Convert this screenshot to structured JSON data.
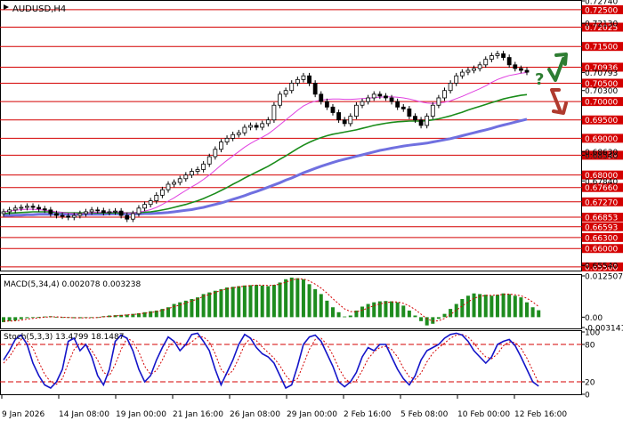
{
  "colors": {
    "background": "#ffffff",
    "frame": "#000000",
    "level_line": "#d40000",
    "level_label_bg": "#d40000",
    "level_label_text": "#ffffff",
    "candle": "#000000",
    "ma_fast": "#e040e0",
    "ma_mid": "#1a8c1a",
    "ma_slow": "#7070e0",
    "macd_hist": "#1e8c1e",
    "macd_signal": "#d40000",
    "stoch_main": "#1414c8",
    "stoch_signal": "#d40000",
    "stoch_level": "#d40000",
    "arrow_up": "#2e7d32",
    "arrow_down": "#b03a2e",
    "question": "#2e7d32"
  },
  "chart_data": [
    {
      "type": "candlestick",
      "title": "AUDUSD,H4",
      "ylim": [
        0.654,
        0.7274
      ],
      "x_tick_labels": [
        "9 Jan 2026",
        "14 Jan 08:00",
        "19 Jan 00:00",
        "21 Jan 16:00",
        "26 Jan 08:00",
        "29 Jan 00:00",
        "2 Feb 16:00",
        "5 Feb 08:00",
        "10 Feb 00:00",
        "12 Feb 16:00"
      ],
      "y_tick_labels": [
        "0.72740",
        "0.72130",
        "0.70793",
        "0.70300",
        "0.68630",
        "0.68540",
        "0.67840",
        "0.65540"
      ],
      "levels": [
        "0.72500",
        "0.72025",
        "0.71500",
        "0.70936",
        "0.70500",
        "0.70000",
        "0.69500",
        "0.69000",
        "0.68539",
        "0.68000",
        "0.67660",
        "0.67270",
        "0.66853",
        "0.66593",
        "0.66300",
        "0.66000",
        "0.65500"
      ],
      "close": [
        0.67,
        0.6705,
        0.671,
        0.6712,
        0.6715,
        0.6712,
        0.6708,
        0.6705,
        0.6695,
        0.669,
        0.6688,
        0.6685,
        0.669,
        0.6695,
        0.67,
        0.6705,
        0.6703,
        0.6698,
        0.67,
        0.6702,
        0.669,
        0.668,
        0.6695,
        0.671,
        0.672,
        0.673,
        0.6745,
        0.676,
        0.6775,
        0.678,
        0.679,
        0.68,
        0.681,
        0.6815,
        0.683,
        0.685,
        0.687,
        0.689,
        0.69,
        0.691,
        0.6915,
        0.693,
        0.6935,
        0.693,
        0.694,
        0.695,
        0.699,
        0.702,
        0.703,
        0.705,
        0.706,
        0.707,
        0.705,
        0.702,
        0.7,
        0.6985,
        0.697,
        0.695,
        0.694,
        0.696,
        0.699,
        0.7,
        0.701,
        0.702,
        0.7015,
        0.701,
        0.7,
        0.6985,
        0.698,
        0.696,
        0.695,
        0.6935,
        0.696,
        0.699,
        0.701,
        0.703,
        0.705,
        0.707,
        0.708,
        0.7085,
        0.709,
        0.71,
        0.7115,
        0.7125,
        0.713,
        0.712,
        0.71,
        0.709,
        0.7085,
        0.708
      ],
      "ma_fast": [
        0.67,
        0.6702,
        0.6704,
        0.6706,
        0.6707,
        0.6707,
        0.6706,
        0.6704,
        0.6702,
        0.67,
        0.6698,
        0.6696,
        0.6695,
        0.6695,
        0.6696,
        0.6698,
        0.6699,
        0.6699,
        0.6699,
        0.67,
        0.6699,
        0.6697,
        0.6697,
        0.6699,
        0.6702,
        0.6706,
        0.6712,
        0.672,
        0.6729,
        0.6738,
        0.6748,
        0.6758,
        0.6768,
        0.6777,
        0.6788,
        0.68,
        0.6813,
        0.6827,
        0.684,
        0.6852,
        0.6864,
        0.6876,
        0.6886,
        0.6895,
        0.6903,
        0.6912,
        0.6924,
        0.6937,
        0.695,
        0.6963,
        0.6976,
        0.6988,
        0.6996,
        0.7001,
        0.7004,
        0.7006,
        0.7007,
        0.7007,
        0.7006,
        0.7006,
        0.7007,
        0.7008,
        0.7009,
        0.7011,
        0.7012,
        0.7013,
        0.7013,
        0.7012,
        0.701,
        0.7007,
        0.7003,
        0.6999,
        0.6996,
        0.6995,
        0.6996,
        0.6998,
        0.7002,
        0.7008,
        0.7014,
        0.7021,
        0.7028,
        0.7035,
        0.7043,
        0.7052,
        0.706,
        0.7066,
        0.7071,
        0.7074,
        0.7077,
        0.7079
      ],
      "ma_mid": [
        0.6695,
        0.6696,
        0.6697,
        0.6698,
        0.6699,
        0.67,
        0.67,
        0.67,
        0.67,
        0.6699,
        0.6698,
        0.6697,
        0.6697,
        0.6697,
        0.6697,
        0.6697,
        0.6697,
        0.6697,
        0.6697,
        0.6697,
        0.6697,
        0.6697,
        0.6697,
        0.6698,
        0.6699,
        0.67,
        0.6702,
        0.6705,
        0.6708,
        0.6712,
        0.6716,
        0.672,
        0.6725,
        0.673,
        0.6736,
        0.6743,
        0.675,
        0.6758,
        0.6766,
        0.6775,
        0.6783,
        0.6792,
        0.68,
        0.6808,
        0.6816,
        0.6824,
        0.6833,
        0.6843,
        0.6852,
        0.6862,
        0.6872,
        0.6881,
        0.6889,
        0.6896,
        0.6902,
        0.6907,
        0.6911,
        0.6914,
        0.6917,
        0.692,
        0.6923,
        0.6927,
        0.6931,
        0.6935,
        0.6938,
        0.6941,
        0.6943,
        0.6945,
        0.6946,
        0.6947,
        0.6947,
        0.6947,
        0.6948,
        0.695,
        0.6953,
        0.6957,
        0.6961,
        0.6966,
        0.6971,
        0.6977,
        0.6982,
        0.6987,
        0.6992,
        0.6997,
        0.7002,
        0.7007,
        0.7011,
        0.7014,
        0.7017,
        0.7019
      ],
      "ma_slow": [
        0.669,
        0.669,
        0.6691,
        0.6691,
        0.6692,
        0.6692,
        0.6693,
        0.6693,
        0.6693,
        0.6693,
        0.6693,
        0.6693,
        0.6693,
        0.6693,
        0.6693,
        0.6693,
        0.6693,
        0.6693,
        0.6694,
        0.6694,
        0.6694,
        0.6694,
        0.6694,
        0.6694,
        0.6695,
        0.6695,
        0.6696,
        0.6697,
        0.6698,
        0.67,
        0.6702,
        0.6704,
        0.6706,
        0.6709,
        0.6712,
        0.6716,
        0.672,
        0.6724,
        0.6729,
        0.6734,
        0.6739,
        0.6744,
        0.675,
        0.6755,
        0.6761,
        0.6767,
        0.6773,
        0.6779,
        0.6786,
        0.6792,
        0.6799,
        0.6806,
        0.6812,
        0.6818,
        0.6824,
        0.6829,
        0.6834,
        0.6839,
        0.6843,
        0.6847,
        0.6851,
        0.6855,
        0.6859,
        0.6863,
        0.6867,
        0.687,
        0.6873,
        0.6876,
        0.6879,
        0.6881,
        0.6883,
        0.6885,
        0.6887,
        0.689,
        0.6893,
        0.6896,
        0.6899,
        0.6903,
        0.6907,
        0.6911,
        0.6915,
        0.6919,
        0.6923,
        0.6927,
        0.6932,
        0.6936,
        0.694,
        0.6944,
        0.6948,
        0.6952
      ]
    },
    {
      "type": "bar",
      "title": "MACD(5,34,4) 0.002078 0.003238",
      "y_tick_labels": [
        "0.012507",
        "0.00",
        "-0.003141"
      ],
      "ylim": [
        -0.00314,
        0.01251
      ],
      "histogram": [
        -0.0015,
        -0.0012,
        -0.001,
        -0.0006,
        -0.0003,
        0.0,
        0.0001,
        0.0002,
        0.0003,
        0.0001,
        -0.0001,
        -0.0002,
        -0.0003,
        -0.0003,
        -0.0002,
        -0.0002,
        0.0,
        0.0003,
        0.0005,
        0.0006,
        0.0007,
        0.0008,
        0.001,
        0.0012,
        0.0015,
        0.0018,
        0.002,
        0.0025,
        0.003,
        0.004,
        0.0045,
        0.005,
        0.0055,
        0.006,
        0.007,
        0.0075,
        0.008,
        0.0085,
        0.009,
        0.0092,
        0.0094,
        0.0096,
        0.0097,
        0.0098,
        0.0096,
        0.0094,
        0.0098,
        0.0105,
        0.0115,
        0.012,
        0.0118,
        0.0115,
        0.01,
        0.0085,
        0.007,
        0.005,
        0.003,
        0.0015,
        0.0002,
        0.0005,
        0.002,
        0.0032,
        0.004,
        0.0045,
        0.0048,
        0.0049,
        0.0048,
        0.0045,
        0.0035,
        0.002,
        0.0005,
        -0.0012,
        -0.0025,
        -0.002,
        -0.0005,
        0.001,
        0.0025,
        0.004,
        0.0055,
        0.0065,
        0.0072,
        0.007,
        0.0068,
        0.0065,
        0.0068,
        0.0072,
        0.007,
        0.0065,
        0.006,
        0.0045,
        0.003,
        0.0021
      ],
      "signal": [
        -0.0012,
        -0.0012,
        -0.0011,
        -0.0009,
        -0.0006,
        -0.0004,
        -0.0002,
        0.0,
        0.0001,
        0.0001,
        0.0,
        -0.0001,
        -0.0002,
        -0.0002,
        -0.0002,
        -0.0002,
        -0.0001,
        0.0001,
        0.0002,
        0.0004,
        0.0005,
        0.0007,
        0.0008,
        0.001,
        0.0012,
        0.0014,
        0.0017,
        0.0021,
        0.0026,
        0.0032,
        0.0037,
        0.0043,
        0.0049,
        0.0055,
        0.0063,
        0.0069,
        0.0075,
        0.0081,
        0.0086,
        0.0089,
        0.0092,
        0.0094,
        0.0096,
        0.0097,
        0.0097,
        0.0096,
        0.0097,
        0.01,
        0.0106,
        0.0113,
        0.0116,
        0.0116,
        0.011,
        0.01,
        0.0088,
        0.0073,
        0.0056,
        0.004,
        0.0025,
        0.0017,
        0.0016,
        0.0021,
        0.0028,
        0.0035,
        0.004,
        0.0044,
        0.0046,
        0.0046,
        0.0042,
        0.0034,
        0.0023,
        0.0009,
        -0.0005,
        -0.0012,
        -0.0011,
        -0.0004,
        0.0008,
        0.0021,
        0.0034,
        0.0046,
        0.0057,
        0.0063,
        0.0066,
        0.0066,
        0.0067,
        0.0069,
        0.007,
        0.0068,
        0.0065,
        0.0057,
        0.0046,
        0.0032
      ]
    },
    {
      "type": "line",
      "title": "Stoch(5,3,3) 13.4799 18.1487",
      "y_tick_labels": [
        "100",
        "80",
        "20",
        "0"
      ],
      "ylim": [
        0,
        100
      ],
      "levels": [
        80,
        20
      ],
      "main": [
        55,
        70,
        88,
        95,
        80,
        50,
        30,
        15,
        10,
        20,
        40,
        85,
        90,
        70,
        80,
        60,
        30,
        15,
        40,
        85,
        95,
        90,
        70,
        40,
        20,
        30,
        55,
        75,
        92,
        85,
        70,
        80,
        96,
        98,
        85,
        70,
        40,
        15,
        35,
        55,
        80,
        96,
        90,
        75,
        65,
        60,
        50,
        30,
        10,
        15,
        45,
        80,
        92,
        95,
        85,
        65,
        45,
        20,
        12,
        20,
        35,
        60,
        75,
        70,
        80,
        80,
        60,
        40,
        25,
        15,
        30,
        55,
        70,
        75,
        80,
        90,
        96,
        98,
        95,
        85,
        70,
        60,
        50,
        60,
        80,
        85,
        88,
        78,
        60,
        40,
        20,
        13
      ],
      "signal": [
        50,
        60,
        75,
        88,
        86,
        74,
        52,
        32,
        20,
        16,
        25,
        50,
        72,
        82,
        80,
        70,
        55,
        35,
        30,
        48,
        72,
        90,
        85,
        68,
        45,
        32,
        38,
        55,
        75,
        85,
        82,
        78,
        84,
        92,
        92,
        84,
        65,
        40,
        30,
        38,
        58,
        80,
        90,
        86,
        76,
        67,
        58,
        46,
        30,
        20,
        25,
        48,
        72,
        88,
        90,
        80,
        63,
        42,
        26,
        18,
        22,
        38,
        57,
        68,
        75,
        77,
        72,
        60,
        42,
        28,
        24,
        34,
        52,
        66,
        75,
        82,
        90,
        95,
        96,
        92,
        82,
        70,
        60,
        57,
        65,
        78,
        84,
        83,
        74,
        58,
        38,
        18
      ]
    }
  ]
}
